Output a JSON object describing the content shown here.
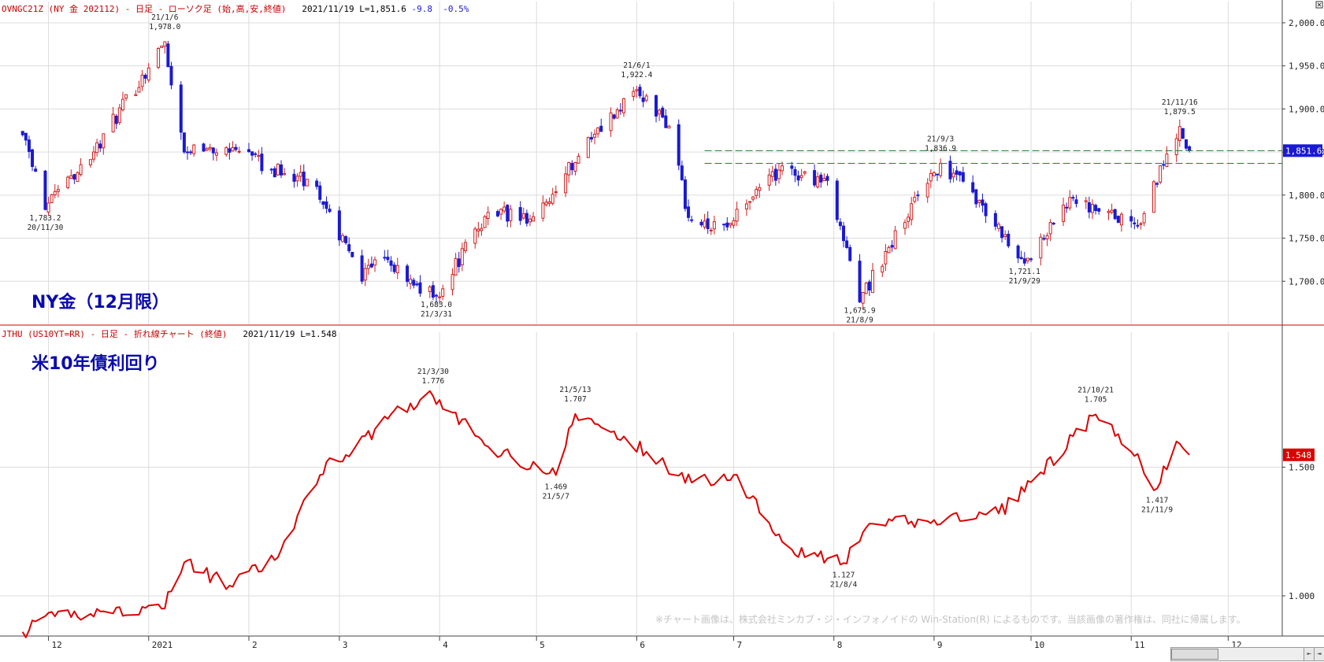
{
  "top_header": {
    "title": "OVNGC21Z (NY 金 202112) - 日足 - ローソク足 (始,高,安,終値)",
    "date": "2021/11/19",
    "last": "L=1,851.6",
    "change": "-9.8",
    "change_pct": "-0.5%"
  },
  "bottom_header": {
    "title": "JTHU (US10YT=RR) - 日足 - 折れ線チャート (終値)",
    "date": "2021/11/19",
    "last": "L=1.548"
  },
  "gold_label": "NY金（12月限）",
  "yield_label": "米10年債利回り",
  "copyright": "※チャート画像は、株式会社ミンカブ・ジ・インフォノイドの Win-Station(R) によるものです。当該画像の著作権は、同社に帰属します。",
  "colors": {
    "up": "#d21f1f",
    "down": "#1a1ad2",
    "yield_line": "#dd0000",
    "grid": "#dcdcdc",
    "divider": "#cc0000",
    "dashed": "#2d7d2d"
  },
  "chart_data": [
    {
      "type": "candlestick",
      "title": "OVNGC21Z (NY 金 202112) - 日足 - ローソク足 (始,高,安,終値)",
      "x_ticks": [
        "12",
        "2021",
        "2",
        "3",
        "4",
        "5",
        "6",
        "7",
        "8",
        "9",
        "10",
        "11",
        "12"
      ],
      "y_ticks": [
        "2,000.0",
        "1,950.0",
        "1,900.0",
        "1,850.0",
        "1,800.0",
        "1,750.0",
        "1,700.0"
      ],
      "ylim": [
        1650,
        2010
      ],
      "last_value_badge": "1,851.6",
      "horizontal_dashed_lines": [
        1851.6,
        1836.9
      ],
      "anchors": [
        {
          "date": "2020-11-23",
          "close": 1870
        },
        {
          "date": "2020-11-30",
          "close": 1783.2
        },
        {
          "date": "2020-12-15",
          "close": 1850
        },
        {
          "date": "2021-01-06",
          "close": 1978.0
        },
        {
          "date": "2021-01-12",
          "close": 1850
        },
        {
          "date": "2021-01-25",
          "close": 1855
        },
        {
          "date": "2021-02-12",
          "close": 1825
        },
        {
          "date": "2021-02-22",
          "close": 1810
        },
        {
          "date": "2021-03-08",
          "close": 1700
        },
        {
          "date": "2021-03-12",
          "close": 1725
        },
        {
          "date": "2021-03-31",
          "close": 1683.0
        },
        {
          "date": "2021-04-16",
          "close": 1780
        },
        {
          "date": "2021-04-30",
          "close": 1775
        },
        {
          "date": "2021-05-18",
          "close": 1865
        },
        {
          "date": "2021-06-01",
          "close": 1922.4
        },
        {
          "date": "2021-06-11",
          "close": 1880
        },
        {
          "date": "2021-06-17",
          "close": 1774
        },
        {
          "date": "2021-06-29",
          "close": 1763
        },
        {
          "date": "2021-07-15",
          "close": 1829
        },
        {
          "date": "2021-07-30",
          "close": 1817
        },
        {
          "date": "2021-08-09",
          "close": 1675.9
        },
        {
          "date": "2021-08-25",
          "close": 1790
        },
        {
          "date": "2021-09-03",
          "close": 1836.9
        },
        {
          "date": "2021-09-15",
          "close": 1794
        },
        {
          "date": "2021-09-29",
          "close": 1721.1
        },
        {
          "date": "2021-10-14",
          "close": 1797
        },
        {
          "date": "2021-10-21",
          "close": 1782
        },
        {
          "date": "2021-11-03",
          "close": 1764
        },
        {
          "date": "2021-11-16",
          "close": 1879.5
        },
        {
          "date": "2021-11-19",
          "close": 1851.6
        }
      ],
      "annotations": [
        {
          "date": "2020-11-30",
          "value": 1783.2,
          "lines": [
            "1,783.2",
            "20/11/30"
          ],
          "pos": "below"
        },
        {
          "date": "2021-01-06",
          "value": 1978.0,
          "lines": [
            "21/1/6",
            "1,978.0"
          ],
          "pos": "above"
        },
        {
          "date": "2021-03-31",
          "value": 1683.0,
          "lines": [
            "1,683.0",
            "21/3/31"
          ],
          "pos": "below"
        },
        {
          "date": "2021-06-01",
          "value": 1922.4,
          "lines": [
            "21/6/1",
            "1,922.4"
          ],
          "pos": "above"
        },
        {
          "date": "2021-08-09",
          "value": 1675.9,
          "lines": [
            "1,675.9",
            "21/8/9"
          ],
          "pos": "below"
        },
        {
          "date": "2021-09-03",
          "value": 1836.9,
          "lines": [
            "21/9/3",
            "1,836.9"
          ],
          "pos": "above"
        },
        {
          "date": "2021-09-29",
          "value": 1721.1,
          "lines": [
            "1,721.1",
            "21/9/29"
          ],
          "pos": "below"
        },
        {
          "date": "2021-11-16",
          "value": 1879.5,
          "lines": [
            "21/11/16",
            "1,879.5"
          ],
          "pos": "above"
        }
      ]
    },
    {
      "type": "line",
      "title": "JTHU (US10YT=RR) - 日足 - 折れ線チャート (終値)",
      "y_ticks": [
        "1.500",
        "1.000"
      ],
      "ylim": [
        0.85,
        2.0
      ],
      "last_value_badge": "1.548",
      "anchors": [
        {
          "date": "2020-11-23",
          "value": 0.86
        },
        {
          "date": "2020-12-03",
          "value": 0.92
        },
        {
          "date": "2020-12-18",
          "value": 0.94
        },
        {
          "date": "2021-01-05",
          "value": 0.95
        },
        {
          "date": "2021-01-12",
          "value": 1.13
        },
        {
          "date": "2021-01-26",
          "value": 1.04
        },
        {
          "date": "2021-02-10",
          "value": 1.15
        },
        {
          "date": "2021-02-25",
          "value": 1.52
        },
        {
          "date": "2021-03-05",
          "value": 1.56
        },
        {
          "date": "2021-03-18",
          "value": 1.72
        },
        {
          "date": "2021-03-30",
          "value": 1.776
        },
        {
          "date": "2021-04-16",
          "value": 1.58
        },
        {
          "date": "2021-05-07",
          "value": 1.469
        },
        {
          "date": "2021-05-13",
          "value": 1.707
        },
        {
          "date": "2021-06-04",
          "value": 1.56
        },
        {
          "date": "2021-06-18",
          "value": 1.44
        },
        {
          "date": "2021-07-01",
          "value": 1.47
        },
        {
          "date": "2021-07-19",
          "value": 1.18
        },
        {
          "date": "2021-08-04",
          "value": 1.127
        },
        {
          "date": "2021-08-13",
          "value": 1.28
        },
        {
          "date": "2021-08-30",
          "value": 1.29
        },
        {
          "date": "2021-09-21",
          "value": 1.32
        },
        {
          "date": "2021-10-04",
          "value": 1.48
        },
        {
          "date": "2021-10-21",
          "value": 1.705
        },
        {
          "date": "2021-11-01",
          "value": 1.56
        },
        {
          "date": "2021-11-09",
          "value": 1.417
        },
        {
          "date": "2021-11-15",
          "value": 1.6
        },
        {
          "date": "2021-11-19",
          "value": 1.548
        }
      ],
      "annotations": [
        {
          "date": "2021-03-30",
          "value": 1.776,
          "lines": [
            "21/3/30",
            "1.776"
          ],
          "pos": "above"
        },
        {
          "date": "2021-05-13",
          "value": 1.707,
          "lines": [
            "21/5/13",
            "1.707"
          ],
          "pos": "above"
        },
        {
          "date": "2021-05-07",
          "value": 1.469,
          "lines": [
            "1.469",
            "21/5/7"
          ],
          "pos": "below"
        },
        {
          "date": "2021-08-04",
          "value": 1.127,
          "lines": [
            "1.127",
            "21/8/4"
          ],
          "pos": "below"
        },
        {
          "date": "2021-10-21",
          "value": 1.705,
          "lines": [
            "21/10/21",
            "1.705"
          ],
          "pos": "above"
        },
        {
          "date": "2021-11-09",
          "value": 1.417,
          "lines": [
            "1.417",
            "21/11/9"
          ],
          "pos": "below"
        }
      ]
    }
  ]
}
